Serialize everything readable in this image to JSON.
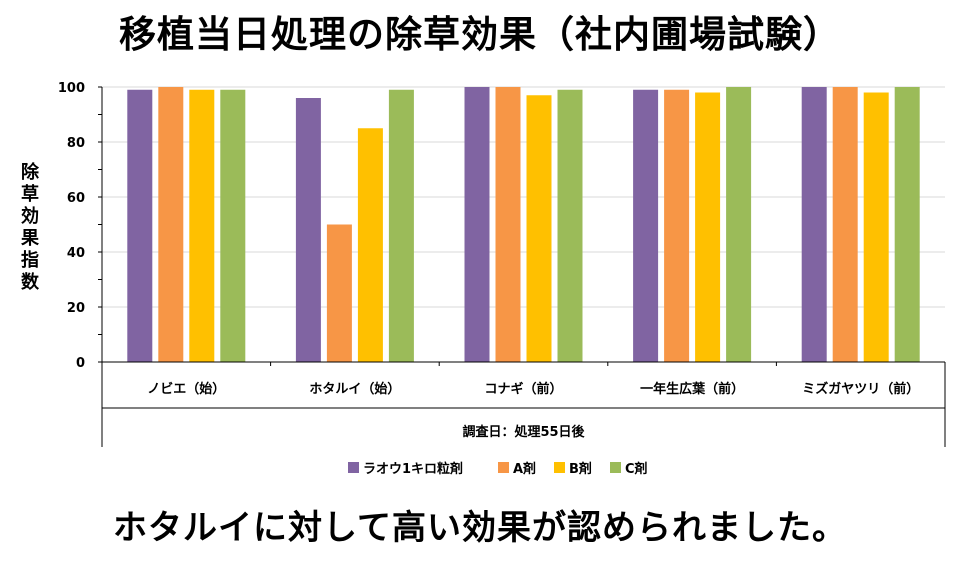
{
  "page": {
    "title": "移植当日処理の除草効果（社内圃場試験）",
    "conclusion": "ホタルイに対して高い効果が認められました。"
  },
  "chart_data": {
    "type": "bar",
    "title": "移植当日処理の除草効果（社内圃場試験）",
    "ylabel": "除草効果指数",
    "xlabel": "調査日：処理55日後",
    "ylim": [
      0,
      100
    ],
    "yticks": [
      "0",
      "20",
      "40",
      "60",
      "80",
      "100"
    ],
    "categories": [
      "ノビエ（始）",
      "ホタルイ（始）",
      "コナギ（前）",
      "一年生広葉（前）",
      "ミズガヤツリ（前）"
    ],
    "series": [
      {
        "name": "ラオウ1キロ粒剤",
        "color": "#8064a2",
        "values": [
          99,
          96,
          100,
          99,
          100
        ]
      },
      {
        "name": "A剤",
        "color": "#f79646",
        "values": [
          100,
          50,
          100,
          99,
          100
        ]
      },
      {
        "name": "B剤",
        "color": "#ffc000",
        "values": [
          99,
          85,
          97,
          98,
          98
        ]
      },
      {
        "name": "C剤",
        "color": "#9bbb59",
        "values": [
          99,
          99,
          99,
          100,
          100
        ]
      }
    ],
    "grid": true,
    "legend": "bottom"
  }
}
